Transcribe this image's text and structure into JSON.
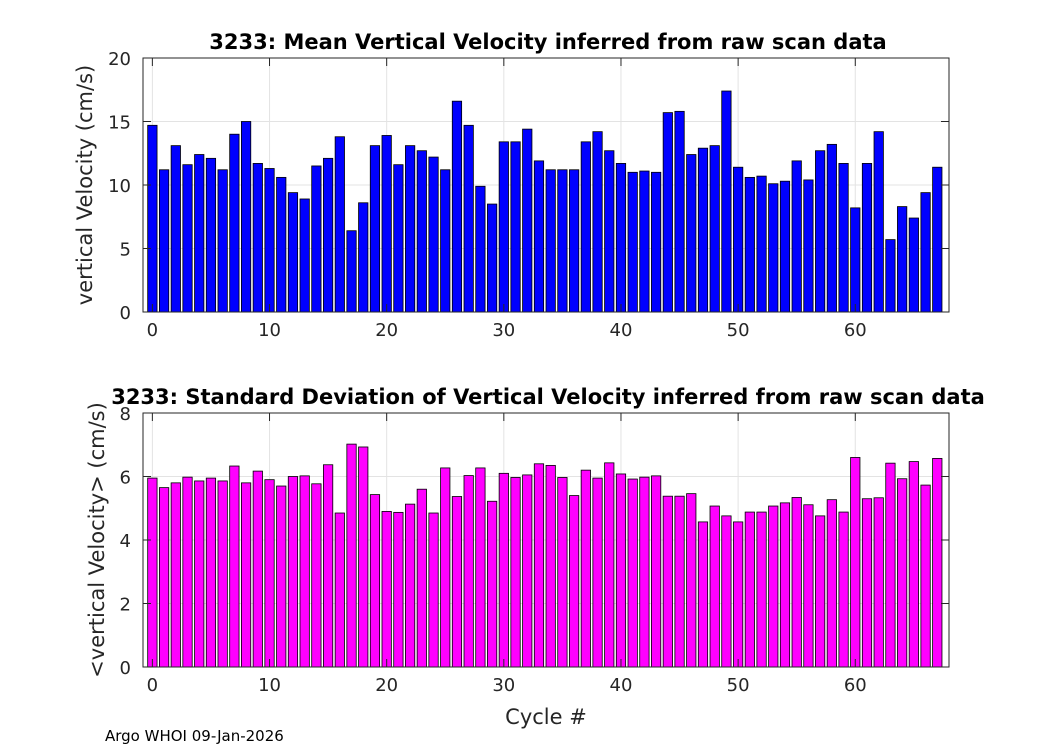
{
  "footer": "Argo WHOI 09-Jan-2026",
  "colors": {
    "mean_bar": "#0000ff",
    "std_bar": "#ff00ff",
    "grid": "#e3e3e3",
    "axis": "#262626"
  },
  "chart_data": [
    {
      "type": "bar",
      "title": "3233: Mean Vertical Velocity inferred from raw scan data",
      "xlabel": "",
      "ylabel": "vertical Velocity (cm/s)",
      "xlim": [
        -0.8,
        68
      ],
      "ylim": [
        0,
        20
      ],
      "xticks": [
        0,
        10,
        20,
        30,
        40,
        50,
        60
      ],
      "yticks": [
        0,
        5,
        10,
        15,
        20
      ],
      "grid": true,
      "x": [
        0,
        1,
        2,
        3,
        4,
        5,
        6,
        7,
        8,
        9,
        10,
        11,
        12,
        13,
        14,
        15,
        16,
        17,
        18,
        19,
        20,
        21,
        22,
        23,
        24,
        25,
        26,
        27,
        28,
        29,
        30,
        31,
        32,
        33,
        34,
        35,
        36,
        37,
        38,
        39,
        40,
        41,
        42,
        43,
        44,
        45,
        46,
        47,
        48,
        49,
        50,
        51,
        52,
        53,
        54,
        55,
        56,
        57,
        58,
        59,
        60,
        61,
        62,
        63,
        64,
        65,
        66,
        67
      ],
      "values": [
        14.7,
        11.2,
        13.1,
        11.6,
        12.4,
        12.1,
        11.2,
        14.0,
        15.0,
        11.7,
        11.3,
        10.6,
        9.4,
        8.9,
        11.5,
        12.1,
        13.8,
        6.4,
        8.6,
        13.1,
        13.9,
        11.6,
        13.1,
        12.7,
        12.2,
        11.2,
        16.6,
        14.7,
        9.9,
        8.5,
        13.4,
        13.4,
        14.4,
        11.9,
        11.2,
        11.2,
        11.2,
        13.4,
        14.2,
        12.7,
        11.7,
        11.0,
        11.1,
        11.0,
        15.7,
        15.8,
        12.4,
        12.9,
        13.1,
        17.4,
        11.4,
        10.6,
        10.7,
        10.1,
        10.3,
        11.9,
        10.4,
        12.7,
        13.2,
        11.7,
        8.2,
        11.7,
        14.2,
        5.7,
        8.3,
        7.4,
        9.4,
        11.4
      ]
    },
    {
      "type": "bar",
      "title": "3233: Standard Deviation of Vertical Velocity inferred from raw scan data",
      "xlabel": "Cycle #",
      "ylabel": "<vertical Velocity> (cm/s)",
      "xlim": [
        -0.8,
        68
      ],
      "ylim": [
        0,
        8
      ],
      "xticks": [
        0,
        10,
        20,
        30,
        40,
        50,
        60
      ],
      "yticks": [
        0,
        2,
        4,
        6,
        8
      ],
      "grid": true,
      "x": [
        0,
        1,
        2,
        3,
        4,
        5,
        6,
        7,
        8,
        9,
        10,
        11,
        12,
        13,
        14,
        15,
        16,
        17,
        18,
        19,
        20,
        21,
        22,
        23,
        24,
        25,
        26,
        27,
        28,
        29,
        30,
        31,
        32,
        33,
        34,
        35,
        36,
        37,
        38,
        39,
        40,
        41,
        42,
        43,
        44,
        45,
        46,
        47,
        48,
        49,
        50,
        51,
        52,
        53,
        54,
        55,
        56,
        57,
        58,
        59,
        60,
        61,
        62,
        63,
        64,
        65,
        66,
        67
      ],
      "values": [
        5.95,
        5.65,
        5.8,
        5.98,
        5.86,
        5.95,
        5.86,
        6.33,
        5.8,
        6.17,
        5.9,
        5.7,
        6.0,
        6.02,
        5.77,
        6.37,
        4.85,
        7.02,
        6.93,
        5.43,
        4.9,
        4.87,
        5.13,
        5.6,
        4.85,
        6.27,
        5.37,
        6.03,
        6.27,
        5.22,
        6.1,
        5.97,
        6.05,
        6.4,
        6.35,
        5.97,
        5.4,
        6.2,
        5.95,
        6.43,
        6.08,
        5.92,
        5.98,
        6.02,
        5.38,
        5.38,
        5.46,
        4.57,
        5.07,
        4.76,
        4.57,
        4.88,
        4.88,
        5.07,
        5.17,
        5.34,
        5.11,
        4.76,
        5.27,
        4.88,
        6.6,
        5.3,
        5.33,
        6.42,
        5.93,
        6.47,
        5.73,
        6.57
      ]
    }
  ]
}
